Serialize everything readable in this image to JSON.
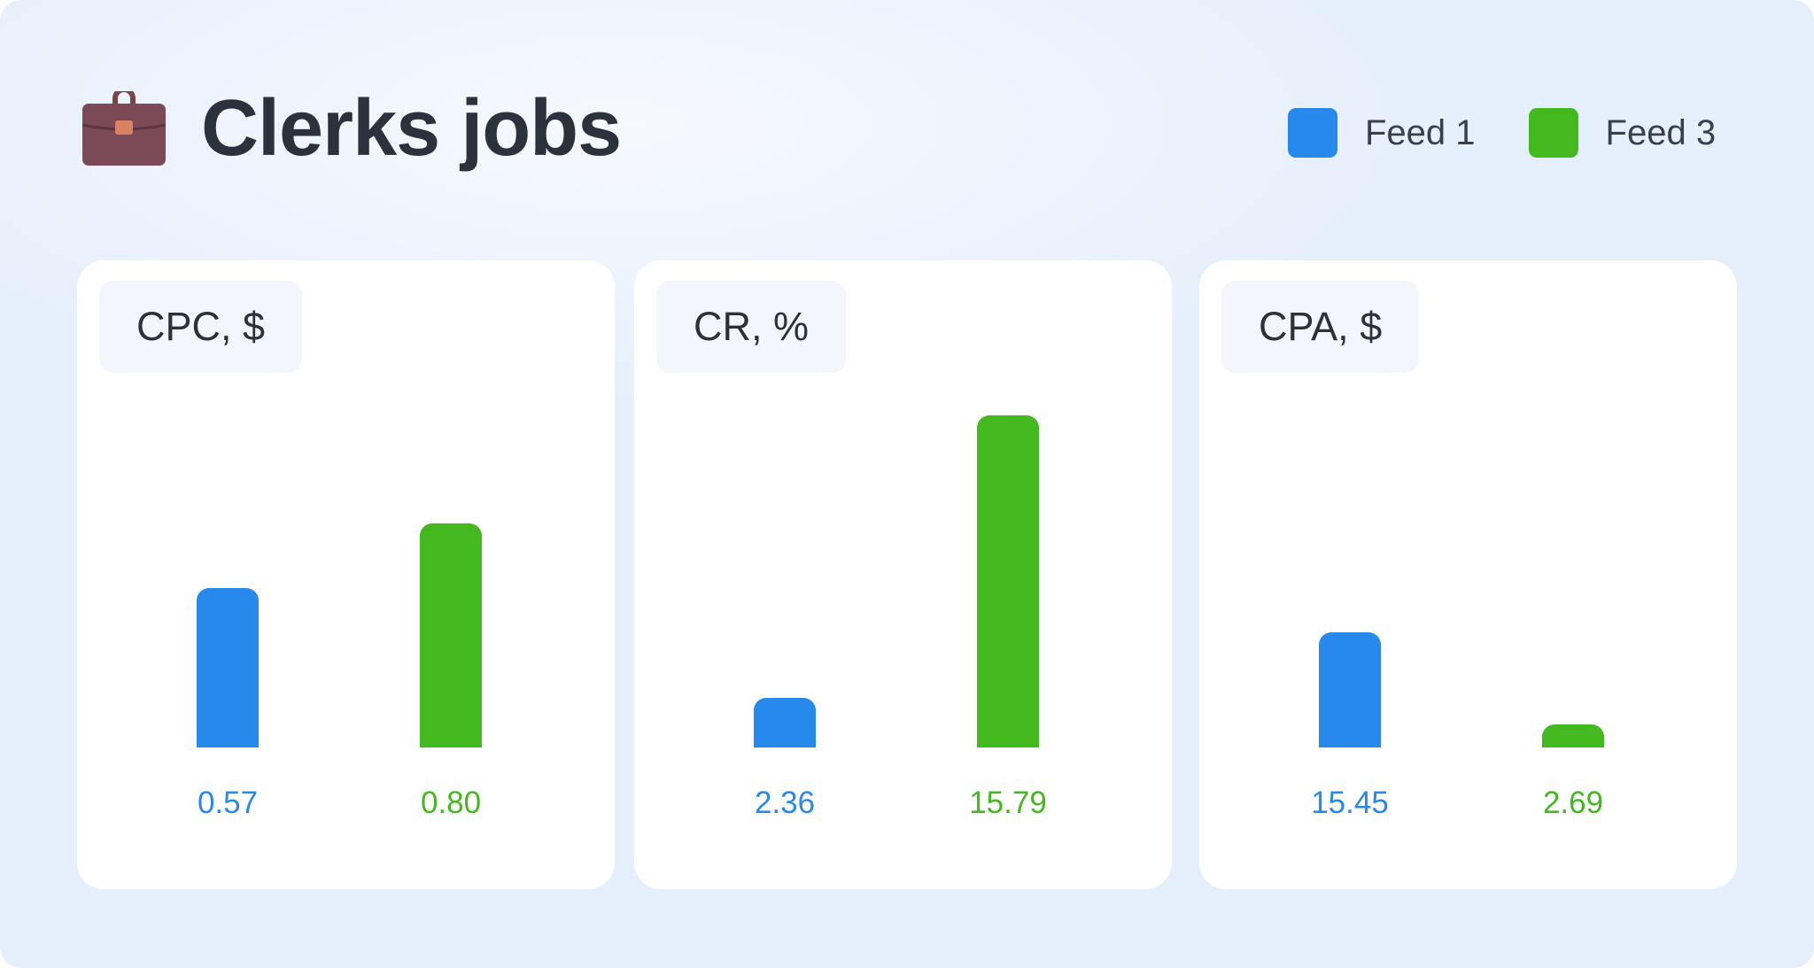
{
  "header": {
    "title": "Clerks jobs",
    "icon": "briefcase-icon"
  },
  "legend": [
    {
      "label": "Feed 1",
      "color": "#2889ec"
    },
    {
      "label": "Feed 3",
      "color": "#43b91f"
    }
  ],
  "chart_data": [
    {
      "type": "bar",
      "title": "CPC, $",
      "categories": [
        "Feed 1",
        "Feed 3"
      ],
      "values": [
        0.57,
        0.8
      ],
      "value_labels": [
        "0.57",
        "0.80"
      ],
      "ylim": [
        0,
        1.2
      ]
    },
    {
      "type": "bar",
      "title": "CR, %",
      "categories": [
        "Feed 1",
        "Feed 3"
      ],
      "values": [
        2.36,
        15.79
      ],
      "value_labels": [
        "2.36",
        "15.79"
      ],
      "ylim": [
        0,
        16
      ]
    },
    {
      "type": "bar",
      "title": "CPA, $",
      "categories": [
        "Feed 1",
        "Feed 3"
      ],
      "values": [
        15.45,
        2.69
      ],
      "value_labels": [
        "15.45",
        "2.69"
      ],
      "ylim": [
        0,
        45
      ]
    }
  ]
}
